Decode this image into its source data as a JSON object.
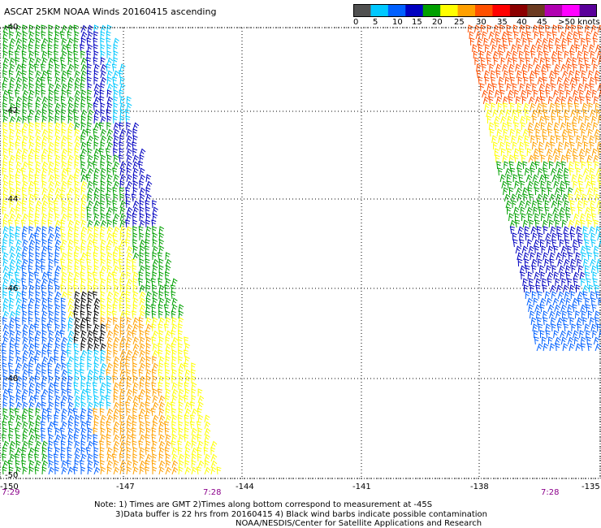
{
  "title": "ASCAT 25KM NOAA Winds 20160415 ascending",
  "colorbar": {
    "labels": [
      "0",
      "5",
      "10",
      "15",
      "20",
      "25",
      "30",
      "35",
      "40",
      "45",
      ">50 knots"
    ],
    "colors": [
      "#505050",
      "#00c8ff",
      "#0060ff",
      "#0000c0",
      "#00a000",
      "#ffff00",
      "#ffa000",
      "#ff5000",
      "#ff0000",
      "#8b0000",
      "#6b3a20",
      "#b000b0",
      "#ff00ff",
      "#5a009a"
    ]
  },
  "latitudes": [
    "-40",
    "-42",
    "-44",
    "-46",
    "-48",
    "-50"
  ],
  "longitudes": [
    "-150",
    "-147",
    "-144",
    "-141",
    "-138",
    "-135"
  ],
  "times": [
    "7:29",
    "7:28",
    "7:28"
  ],
  "notes": [
    "Note: 1) Times are GMT 2)Times along bottom correspond to measurement at -45S",
    "3)Data buffer is 22 hrs from 20160415 4) Black wind barbs indicate possible contamination",
    "NOAA/NESDIS/Center for Satellite Applications and Research"
  ]
}
